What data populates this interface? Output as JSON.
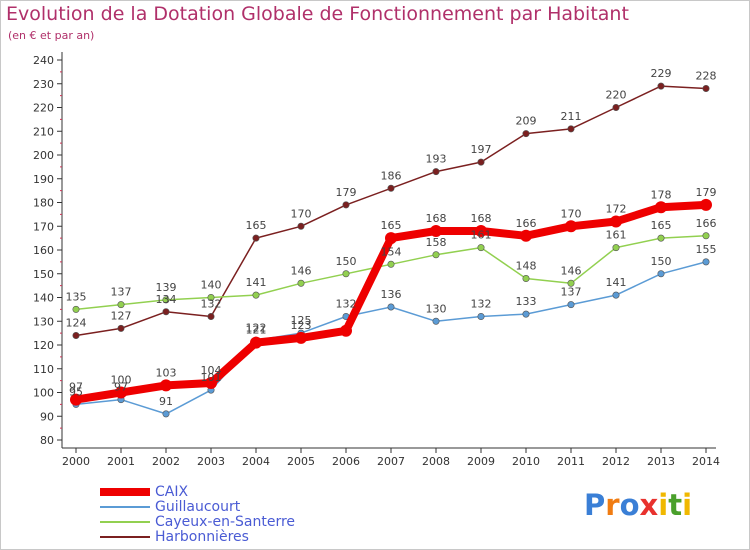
{
  "header": {
    "title": "Evolution de la Dotation Globale de Fonctionnement par Habitant",
    "subtitle": "(en € et par an)"
  },
  "logo": {
    "text": "Proxiti",
    "letters": [
      "P",
      "r",
      "o",
      "x",
      "i",
      "t",
      "i"
    ],
    "colors": [
      "#3a7fd6",
      "#f07c12",
      "#3a7fd6",
      "#e8322e",
      "#f0b800",
      "#4aa02c",
      "#f0b800"
    ]
  },
  "chart_data": {
    "type": "line",
    "title": "Evolution de la Dotation Globale de Fonctionnement par Habitant",
    "subtitle": "(en € et par an)",
    "x": [
      "2000",
      "2001",
      "2002",
      "2003",
      "2004",
      "2005",
      "2006",
      "2007",
      "2008",
      "2009",
      "2010",
      "2011",
      "2012",
      "2013",
      "2014"
    ],
    "yticks": [
      "80",
      "90",
      "100",
      "110",
      "120",
      "130",
      "140",
      "150",
      "160",
      "170",
      "180",
      "190",
      "200",
      "210",
      "220",
      "230",
      "240"
    ],
    "ylim": [
      80,
      240
    ],
    "grid": false,
    "legend_position": "bottom-left",
    "series": [
      {
        "name": "CAIX",
        "color": "#ee0000",
        "values": [
          97,
          100,
          103,
          104,
          121,
          123,
          126,
          165,
          168,
          168,
          166,
          170,
          172,
          178,
          179
        ],
        "labels": [
          "97",
          "100",
          "103",
          "104",
          "121",
          "123",
          "",
          "165",
          "168",
          "168",
          "166",
          "170",
          "172",
          "178",
          "179"
        ]
      },
      {
        "name": "Guillaucourt",
        "color": "#5b9bd5",
        "values": [
          95,
          97,
          91,
          101,
          122,
          125,
          132,
          136,
          130,
          132,
          133,
          137,
          141,
          150,
          155
        ],
        "labels": [
          "95",
          "97",
          "91",
          "101",
          "122",
          "125",
          "132",
          "136",
          "130",
          "132",
          "133",
          "137",
          "141",
          "150",
          "155"
        ]
      },
      {
        "name": "Cayeux-en-Santerre",
        "color": "#92d050",
        "values": [
          135,
          137,
          139,
          140,
          141,
          146,
          150,
          154,
          158,
          161,
          148,
          146,
          161,
          165,
          166
        ],
        "labels": [
          "135",
          "137",
          "139",
          "140",
          "141",
          "146",
          "150",
          "154",
          "158",
          "161",
          "148",
          "146",
          "161",
          "165",
          "166"
        ]
      },
      {
        "name": "Harbonnières",
        "color": "#7b2020",
        "values": [
          124,
          127,
          134,
          132,
          165,
          170,
          179,
          186,
          193,
          197,
          209,
          211,
          220,
          229,
          228
        ],
        "labels": [
          "124",
          "127",
          "134",
          "132",
          "165",
          "170",
          "179",
          "186",
          "193",
          "197",
          "209",
          "211",
          "220",
          "229",
          "228"
        ]
      }
    ]
  }
}
